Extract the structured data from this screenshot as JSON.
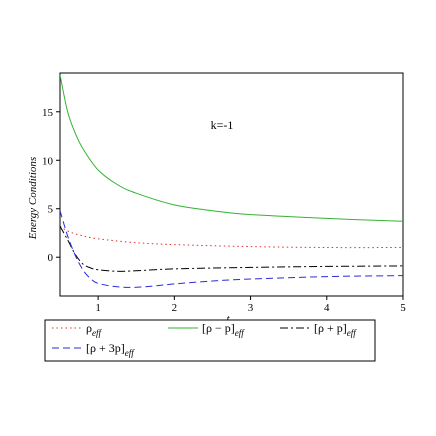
{
  "chart_data": {
    "type": "line",
    "title": "",
    "xlabel": "t",
    "ylabel": "Energy Conditions",
    "annotation": "k=-1",
    "xlim": [
      0.5,
      5
    ],
    "ylim": [
      -4,
      19
    ],
    "xticks": [
      1,
      2,
      3,
      4,
      5
    ],
    "yticks": [
      0,
      5,
      10,
      15
    ],
    "grid": false,
    "legend_position": "bottom",
    "series": [
      {
        "name": "ρ_eff",
        "label_main": "ρ",
        "label_sub": "eff",
        "color": "#e0302a",
        "dash": "dotted",
        "x": [
          0.5,
          0.6,
          0.75,
          1.0,
          1.5,
          2.0,
          3.0,
          4.0,
          5.0
        ],
        "y": [
          3.2,
          2.7,
          2.3,
          1.9,
          1.5,
          1.3,
          1.1,
          1.0,
          1.0
        ]
      },
      {
        "name": "[ρ − p]_eff",
        "label_main": "[ρ − p]",
        "label_sub": "eff",
        "color": "#33b333",
        "dash": "solid",
        "x": [
          0.5,
          0.6,
          0.7,
          0.8,
          1.0,
          1.25,
          1.5,
          2.0,
          2.5,
          3.0,
          4.0,
          5.0
        ],
        "y": [
          18.8,
          15.0,
          12.8,
          11.2,
          9.0,
          7.5,
          6.6,
          5.4,
          4.8,
          4.4,
          4.0,
          3.7
        ]
      },
      {
        "name": "[ρ + p]_eff",
        "label_main": "[ρ + p]",
        "label_sub": "eff",
        "color": "#000000",
        "dash": "dashdot",
        "x": [
          0.5,
          0.6,
          0.7,
          0.8,
          0.9,
          1.0,
          1.25,
          1.5,
          2.0,
          3.0,
          4.0,
          5.0
        ],
        "y": [
          3.2,
          1.8,
          0.3,
          -0.7,
          -1.1,
          -1.3,
          -1.45,
          -1.4,
          -1.2,
          -1.05,
          -0.95,
          -0.9
        ]
      },
      {
        "name": "[ρ + 3p]_eff",
        "label_main": "[ρ + 3p]",
        "label_sub": "eff",
        "color": "#2b2bd9",
        "dash": "dashed",
        "x": [
          0.5,
          0.6,
          0.7,
          0.8,
          0.9,
          1.0,
          1.25,
          1.5,
          1.75,
          2.0,
          2.5,
          3.0,
          4.0,
          5.0
        ],
        "y": [
          4.8,
          2.2,
          0.2,
          -1.3,
          -2.2,
          -2.7,
          -3.05,
          -3.1,
          -2.95,
          -2.75,
          -2.45,
          -2.25,
          -2.0,
          -1.9
        ]
      }
    ]
  }
}
